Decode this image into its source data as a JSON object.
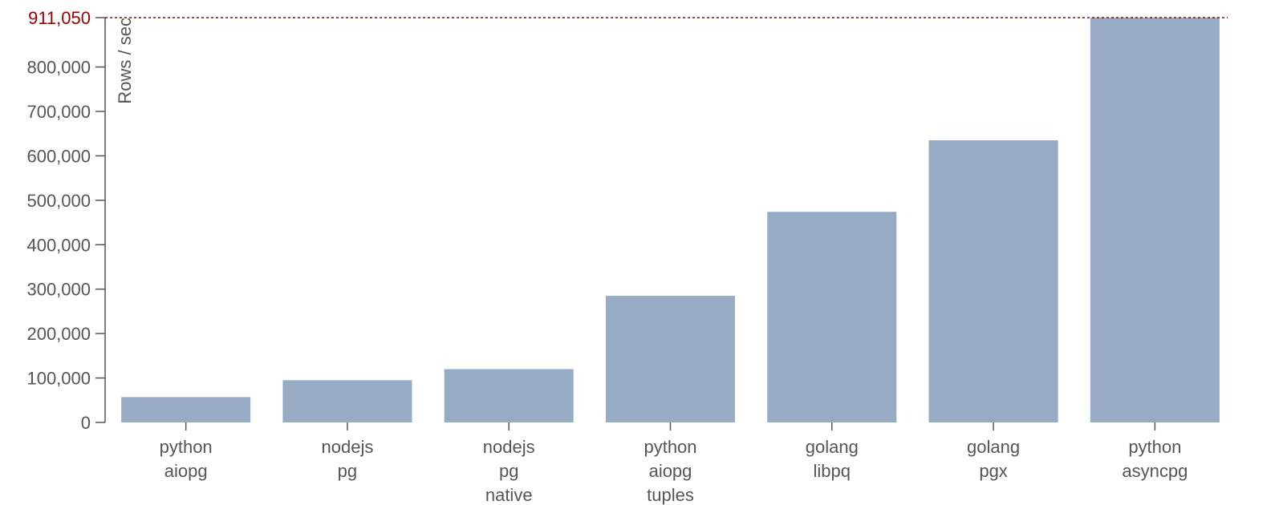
{
  "chart_data": {
    "type": "bar",
    "ylabel": "Rows / sec",
    "ylim": [
      0,
      911050
    ],
    "yticks": [
      "0",
      "100,000",
      "200,000",
      "300,000",
      "400,000",
      "500,000",
      "600,000",
      "700,000",
      "800,000"
    ],
    "ytick_values": [
      0,
      100000,
      200000,
      300000,
      400000,
      500000,
      600000,
      700000,
      800000
    ],
    "categories": [
      [
        "python",
        "aiopg"
      ],
      [
        "nodejs",
        "pg"
      ],
      [
        "nodejs",
        "pg",
        "native"
      ],
      [
        "python",
        "aiopg",
        "tuples"
      ],
      [
        "golang",
        "libpq"
      ],
      [
        "golang",
        "pgx"
      ],
      [
        "python",
        "asyncpg"
      ]
    ],
    "values": [
      57000,
      95000,
      120000,
      285000,
      474000,
      635000,
      911050
    ],
    "max_line": {
      "value": 911050,
      "label": "911,050"
    },
    "colors": {
      "bar": "#98abc5",
      "axis": "#555555",
      "max_line": "#9b0000"
    },
    "grid": false
  }
}
